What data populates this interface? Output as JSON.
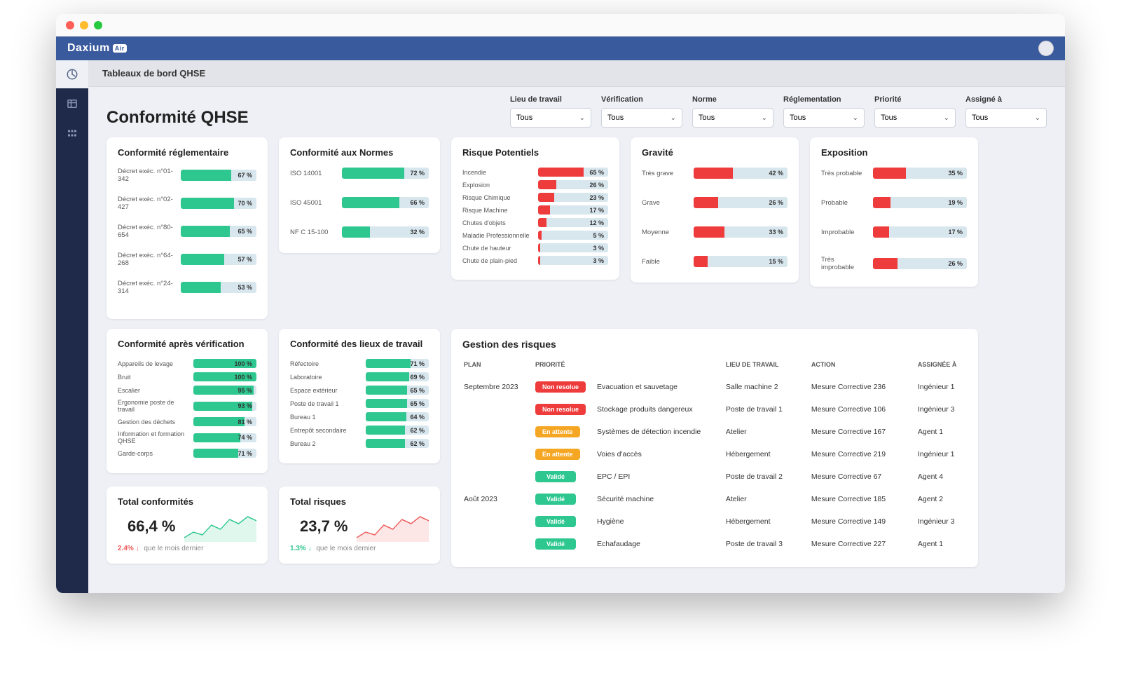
{
  "brand": {
    "name": "Daxium",
    "badge": "Air"
  },
  "breadcrumb": "Tableaux de bord QHSE",
  "page_title": "Conformité QHSE",
  "colors": {
    "green": "#2dc78f",
    "red": "#ee3b3b",
    "blue_track": "#d8e6ee",
    "orange": "#f5a623",
    "valid": "#2dc78f",
    "unresolved": "#ee3b3b",
    "pending": "#f5a623",
    "kpi_green": "#2dc78f",
    "kpi_red": "#ee5a5a"
  },
  "filters": [
    {
      "label": "Lieu de travail",
      "value": "Tous"
    },
    {
      "label": "Vérification",
      "value": "Tous"
    },
    {
      "label": "Norme",
      "value": "Tous"
    },
    {
      "label": "Réglementation",
      "value": "Tous"
    },
    {
      "label": "Priorité",
      "value": "Tous"
    },
    {
      "label": "Assigné à",
      "value": "Tous"
    }
  ],
  "conf_reg": {
    "title": "Conformité réglementaire",
    "items": [
      {
        "label": "Décret exéc. n°01-342",
        "pct": 67
      },
      {
        "label": "Décret exéc. n°02-427",
        "pct": 70
      },
      {
        "label": "Décret exéc. n°80-654",
        "pct": 65
      },
      {
        "label": "Décret exéc. n°64-268",
        "pct": 57
      },
      {
        "label": "Décret exéc. n°24-314",
        "pct": 53
      }
    ]
  },
  "conf_norm": {
    "title": "Conformité aux Normes",
    "items": [
      {
        "label": "ISO 14001",
        "pct": 72
      },
      {
        "label": "ISO 45001",
        "pct": 66
      },
      {
        "label": "NF C 15-100",
        "pct": 32
      }
    ]
  },
  "risques": {
    "title": "Risque Potentiels",
    "items": [
      {
        "label": "Incendie",
        "pct": 65
      },
      {
        "label": "Explosion",
        "pct": 26
      },
      {
        "label": "Risque Chimique",
        "pct": 23
      },
      {
        "label": "Risque Machine",
        "pct": 17
      },
      {
        "label": "Chutes d'objets",
        "pct": 12
      },
      {
        "label": "Maladie Professionnelle",
        "pct": 5
      },
      {
        "label": "Chute de hauteur",
        "pct": 3
      },
      {
        "label": "Chute de plain-pied",
        "pct": 3
      }
    ]
  },
  "gravite": {
    "title": "Gravité",
    "items": [
      {
        "label": "Très grave",
        "pct": 42
      },
      {
        "label": "Grave",
        "pct": 26
      },
      {
        "label": "Moyenne",
        "pct": 33
      },
      {
        "label": "Faible",
        "pct": 15
      }
    ]
  },
  "exposition": {
    "title": "Exposition",
    "items": [
      {
        "label": "Très probable",
        "pct": 35
      },
      {
        "label": "Probable",
        "pct": 19
      },
      {
        "label": "Improbable",
        "pct": 17
      },
      {
        "label": "Très improbable",
        "pct": 26
      }
    ]
  },
  "conf_verif": {
    "title": "Conformité après vérification",
    "items": [
      {
        "label": "Appareils de levage",
        "pct": 100
      },
      {
        "label": "Bruit",
        "pct": 100
      },
      {
        "label": "Escalier",
        "pct": 95
      },
      {
        "label": "Ergonomie poste de travail",
        "pct": 93
      },
      {
        "label": "Gestion des déchets",
        "pct": 81
      },
      {
        "label": "Information et formation QHSE",
        "pct": 74
      },
      {
        "label": "Garde-corps",
        "pct": 71
      }
    ]
  },
  "conf_lieux": {
    "title": "Conformité des lieux de travail",
    "items": [
      {
        "label": "Réfectoire",
        "pct": 71
      },
      {
        "label": "Laboratoire",
        "pct": 69
      },
      {
        "label": "Espace extérieur",
        "pct": 65
      },
      {
        "label": "Poste de travail 1",
        "pct": 65
      },
      {
        "label": "Bureau 1",
        "pct": 64
      },
      {
        "label": "Entrepôt secondaire",
        "pct": 62
      },
      {
        "label": "Bureau 2",
        "pct": 62
      }
    ]
  },
  "kpi_conf": {
    "title": "Total conformités",
    "value": "66,4 %",
    "delta": "2.4%",
    "delta_dir": "↓",
    "note": "que le mois dernier",
    "delta_color": "#ee5a5a",
    "spark_color": "#2dc78f"
  },
  "kpi_risk": {
    "title": "Total risques",
    "value": "23,7 %",
    "delta": "1.3%",
    "delta_dir": "↓",
    "note": "que le mois dernier",
    "delta_color": "#2dc78f",
    "spark_color": "#ee5a5a"
  },
  "risk_mgmt": {
    "title": "Gestion des risques",
    "columns": [
      "PLAN",
      "PRIORITÉ",
      "",
      "LIEU DE TRAVAIL",
      "ACTION",
      "ASSIGNÉE À"
    ],
    "tag_labels": {
      "unresolved": "Non resolue",
      "pending": "En attente",
      "valid": "Validé"
    },
    "rows": [
      {
        "plan": "Septembre 2023",
        "priority": "unresolved",
        "desc": "Evacuation et sauvetage",
        "lieu": "Salle machine 2",
        "action": "Mesure Corrective  236",
        "assignee": "Ingénieur 1"
      },
      {
        "plan": "",
        "priority": "unresolved",
        "desc": "Stockage produits dangereux",
        "lieu": "Poste de travail 1",
        "action": "Mesure Corrective  106",
        "assignee": "Ingénieur 3"
      },
      {
        "plan": "",
        "priority": "pending",
        "desc": "Systèmes de détection incendie",
        "lieu": "Atelier",
        "action": "Mesure Corrective 167",
        "assignee": "Agent 1"
      },
      {
        "plan": "",
        "priority": "pending",
        "desc": "Voies d'accès",
        "lieu": "Hébergement",
        "action": "Mesure Corrective 219",
        "assignee": "Ingénieur 1"
      },
      {
        "plan": "",
        "priority": "valid",
        "desc": "EPC / EPI",
        "lieu": "Poste de travail 2",
        "action": "Mesure Corrective 67",
        "assignee": "Agent 4"
      },
      {
        "plan": "Août 2023",
        "priority": "valid",
        "desc": "Sécurité machine",
        "lieu": "Atelier",
        "action": "Mesure Corrective 185",
        "assignee": "Agent 2"
      },
      {
        "plan": "",
        "priority": "valid",
        "desc": "Hygiène",
        "lieu": "Hébergement",
        "action": "Mesure Corrective 149",
        "assignee": "Ingénieur 3"
      },
      {
        "plan": "",
        "priority": "valid",
        "desc": "Echafaudage",
        "lieu": "Poste de travail 3",
        "action": "Mesure Corrective 227",
        "assignee": "Agent 1"
      }
    ]
  }
}
